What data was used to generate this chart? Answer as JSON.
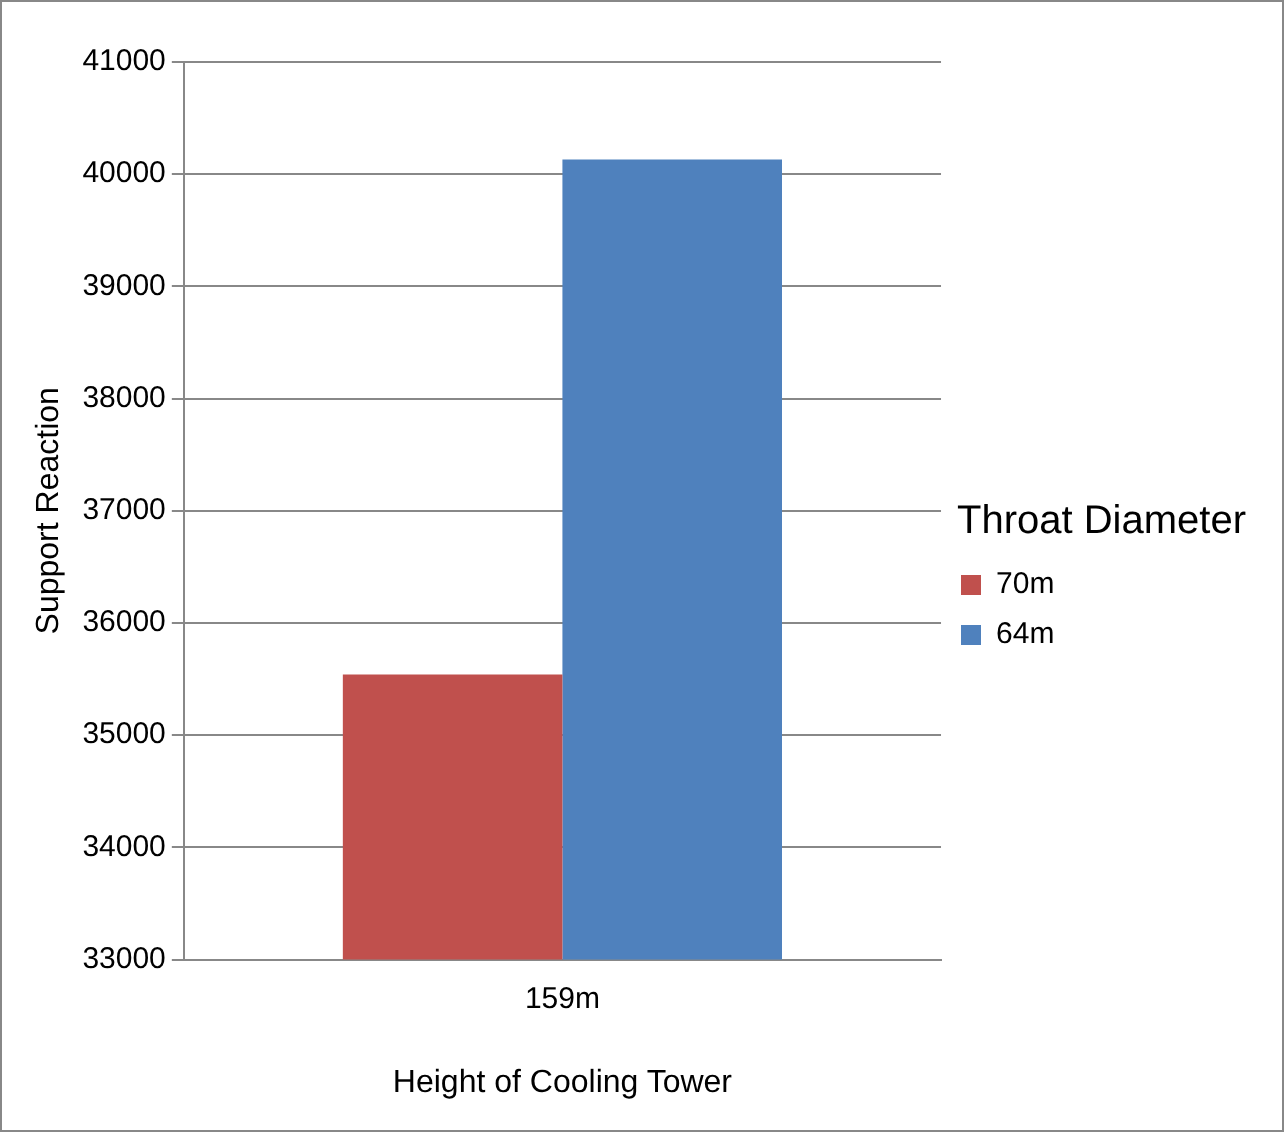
{
  "chart_data": {
    "type": "bar",
    "xlabel": "Height of Cooling Tower",
    "ylabel": "Support Reaction",
    "legend_title": "Throat Diameter",
    "legend": "right",
    "grid": "y",
    "categories": [
      "159m"
    ],
    "series": [
      {
        "name": "70m",
        "color": "#c0504d",
        "values": [
          35540
        ]
      },
      {
        "name": "64m",
        "color": "#4f81bd",
        "values": [
          40130
        ]
      }
    ],
    "ylim": [
      33000,
      41000
    ],
    "yticks": [
      33000,
      34000,
      35000,
      36000,
      37000,
      38000,
      39000,
      40000,
      41000
    ]
  }
}
